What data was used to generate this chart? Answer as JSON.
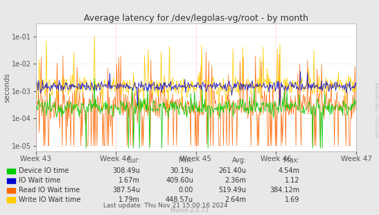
{
  "title": "Average latency for /dev/legolas-vg/root - by month",
  "ylabel": "seconds",
  "right_label": "RRDTOOL / TOBI OETIKER",
  "x_ticks": [
    "Week 43",
    "Week 44",
    "Week 45",
    "Week 46",
    "Week 47"
  ],
  "bg_color": "#e8e8e8",
  "plot_bg_color": "#ffffff",
  "grid_color": "#cccccc",
  "colors": {
    "device_io": "#00cc00",
    "io_wait": "#0000cc",
    "read_io_wait": "#ff6600",
    "write_io_wait": "#ffcc00"
  },
  "legend": [
    {
      "label": "Device IO time",
      "color": "#00cc00"
    },
    {
      "label": "IO Wait time",
      "color": "#0000cc"
    },
    {
      "label": "Read IO Wait time",
      "color": "#ff6600"
    },
    {
      "label": "Write IO Wait time",
      "color": "#ffcc00"
    }
  ],
  "stats_headers": [
    "Cur:",
    "Min:",
    "Avg:",
    "Max:"
  ],
  "stats_rows": [
    [
      "308.49u",
      "30.19u",
      "261.40u",
      "4.54m"
    ],
    [
      "1.67m",
      "409.60u",
      "2.36m",
      "1.12"
    ],
    [
      "387.54u",
      "0.00",
      "519.49u",
      "384.12m"
    ],
    [
      "1.79m",
      "448.57u",
      "2.64m",
      "1.69"
    ]
  ],
  "last_update": "Last update: Thu Nov 21 15:00:16 2024",
  "munin_version": "Munin 2.0.73",
  "n_points": 500,
  "ymin": 6e-06,
  "ymax": 0.3
}
